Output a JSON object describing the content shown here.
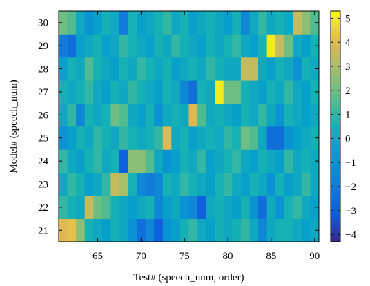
{
  "chart_data": {
    "type": "heatmap",
    "title": "",
    "xlabel": "Test# (speech_num, order)",
    "ylabel": "Model# (speech_num)",
    "x": [
      61,
      62,
      63,
      64,
      65,
      66,
      67,
      68,
      69,
      70,
      71,
      72,
      73,
      74,
      75,
      76,
      77,
      78,
      79,
      80,
      81,
      82,
      83,
      84,
      85,
      86,
      87,
      88,
      89,
      90
    ],
    "y": [
      21,
      22,
      23,
      24,
      25,
      26,
      27,
      28,
      29,
      30
    ],
    "xlim": [
      60.5,
      90.5
    ],
    "ylim": [
      20.5,
      30.5
    ],
    "xticks": [
      65,
      70,
      75,
      80,
      85,
      90
    ],
    "yticks": [
      21,
      22,
      23,
      24,
      25,
      26,
      27,
      28,
      29,
      30
    ],
    "colorbar": {
      "range": [
        -4.3,
        5.3
      ],
      "ticks": [
        5,
        4,
        3,
        2,
        1,
        0,
        -1,
        -2,
        -3,
        -4
      ],
      "tick_labels": [
        "5",
        "4",
        "3",
        "2",
        "1",
        "0",
        "−1",
        "−2",
        "−3",
        "−4"
      ]
    },
    "colormap": "parula",
    "values": [
      [
        4.0,
        4.2,
        2.5,
        0.5,
        0.0,
        -0.5,
        0.5,
        0.0,
        -1.0,
        -2.5,
        -1.5,
        -3.0,
        -1.0,
        -0.5,
        0.5,
        1.0,
        0.0,
        -0.5,
        0.5,
        0.0,
        0.5,
        1.0,
        0.0,
        -1.5,
        0.0,
        0.5,
        0.5,
        0.0,
        -0.5,
        0.0
      ],
      [
        1.0,
        0.5,
        0.0,
        3.5,
        2.0,
        1.5,
        0.5,
        0.0,
        -0.5,
        0.0,
        0.5,
        -1.5,
        -0.5,
        0.0,
        -1.0,
        -1.5,
        -3.0,
        0.0,
        0.5,
        0.0,
        -0.5,
        0.5,
        -1.0,
        -2.5,
        0.0,
        -1.0,
        0.5,
        1.0,
        0.0,
        -0.5
      ],
      [
        0.0,
        1.0,
        0.5,
        -0.5,
        0.0,
        1.0,
        3.5,
        3.0,
        0.5,
        -1.5,
        -2.0,
        -1.5,
        0.5,
        0.0,
        1.0,
        0.5,
        0.0,
        -0.5,
        0.5,
        1.0,
        0.0,
        -0.5,
        0.5,
        0.0,
        -1.0,
        0.5,
        -0.5,
        0.0,
        1.0,
        0.0
      ],
      [
        1.0,
        0.0,
        -0.5,
        0.5,
        1.0,
        0.0,
        0.5,
        -3.0,
        2.5,
        2.5,
        1.5,
        0.0,
        -1.0,
        -0.5,
        0.5,
        0.0,
        1.0,
        -0.5,
        0.0,
        0.5,
        1.0,
        0.0,
        -0.5,
        0.5,
        0.0,
        -0.5,
        1.0,
        0.0,
        0.5,
        0.0
      ],
      [
        -1.0,
        -0.5,
        0.5,
        0.0,
        1.0,
        0.5,
        0.0,
        1.0,
        0.5,
        0.0,
        0.5,
        1.0,
        4.0,
        0.0,
        0.5,
        -0.5,
        0.0,
        0.5,
        0.0,
        1.0,
        0.5,
        2.0,
        1.5,
        0.0,
        -2.5,
        -2.5,
        -1.0,
        -0.5,
        0.0,
        0.5
      ],
      [
        0.0,
        1.0,
        -1.5,
        0.5,
        0.0,
        0.5,
        2.0,
        1.5,
        0.0,
        -0.5,
        0.5,
        -1.0,
        0.0,
        0.5,
        0.0,
        4.0,
        1.5,
        0.0,
        0.5,
        0.0,
        -0.5,
        0.5,
        0.0,
        1.0,
        0.0,
        -1.0,
        0.5,
        0.0,
        -0.5,
        0.0
      ],
      [
        0.5,
        0.0,
        0.5,
        1.0,
        0.0,
        -0.5,
        0.5,
        0.0,
        1.0,
        0.5,
        0.0,
        -0.5,
        0.5,
        0.0,
        -1.5,
        -2.5,
        0.5,
        0.0,
        5.0,
        2.0,
        2.0,
        0.5,
        0.0,
        -0.5,
        0.5,
        0.0,
        1.0,
        0.0,
        -0.5,
        0.5
      ],
      [
        -0.5,
        0.5,
        0.0,
        1.5,
        0.5,
        0.0,
        -0.5,
        0.5,
        0.0,
        1.0,
        0.5,
        0.0,
        0.5,
        -0.5,
        0.0,
        0.5,
        0.0,
        1.0,
        0.5,
        0.0,
        0.0,
        3.5,
        3.5,
        0.0,
        -0.5,
        0.5,
        0.0,
        -1.0,
        0.5,
        0.0
      ],
      [
        -2.0,
        -2.5,
        -0.5,
        0.0,
        0.5,
        -0.5,
        0.0,
        1.0,
        0.5,
        0.0,
        -0.5,
        0.5,
        0.0,
        1.0,
        0.5,
        0.0,
        -0.5,
        0.5,
        0.0,
        0.5,
        1.0,
        0.0,
        -0.5,
        0.5,
        5.0,
        3.5,
        2.0,
        0.0,
        -0.5,
        0.5
      ],
      [
        2.0,
        1.5,
        0.0,
        -1.0,
        -0.5,
        0.5,
        0.0,
        -2.0,
        0.5,
        -0.5,
        0.0,
        0.5,
        1.0,
        0.0,
        0.5,
        -0.5,
        0.0,
        0.5,
        0.0,
        -0.5,
        0.5,
        -1.5,
        0.0,
        1.0,
        0.0,
        0.5,
        0.0,
        3.5,
        2.5,
        1.5
      ]
    ]
  }
}
